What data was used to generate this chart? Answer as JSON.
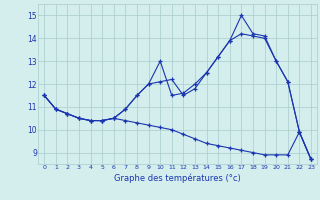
{
  "xlabel": "Graphe des températures (°c)",
  "background_color": "#d4eeee",
  "grid_color": "#aacccc",
  "line_color": "#1a35b0",
  "x_hours": [
    0,
    1,
    2,
    3,
    4,
    5,
    6,
    7,
    8,
    9,
    10,
    11,
    12,
    13,
    14,
    15,
    16,
    17,
    18,
    19,
    20,
    21,
    22,
    23
  ],
  "series1": [
    11.5,
    10.9,
    10.7,
    10.5,
    10.4,
    10.4,
    10.5,
    10.9,
    11.5,
    12.0,
    12.1,
    12.2,
    11.5,
    11.8,
    12.5,
    13.2,
    13.9,
    15.0,
    14.2,
    14.1,
    13.0,
    12.1,
    9.9,
    8.7
  ],
  "series2": [
    11.5,
    10.9,
    10.7,
    10.5,
    10.4,
    10.4,
    10.5,
    10.9,
    11.5,
    12.0,
    13.0,
    11.5,
    11.6,
    12.0,
    12.5,
    13.2,
    13.9,
    14.2,
    14.1,
    14.0,
    13.0,
    12.1,
    9.9,
    8.7
  ],
  "series3": [
    11.5,
    10.9,
    10.7,
    10.5,
    10.4,
    10.4,
    10.5,
    10.4,
    10.3,
    10.2,
    10.1,
    10.0,
    9.8,
    9.6,
    9.4,
    9.3,
    9.2,
    9.1,
    9.0,
    8.9,
    8.9,
    8.9,
    9.9,
    8.7
  ],
  "ylim": [
    8.5,
    15.5
  ],
  "yticks": [
    9,
    10,
    11,
    12,
    13,
    14,
    15
  ],
  "xlim": [
    -0.5,
    23.5
  ],
  "xtick_labels": [
    "0",
    "1",
    "2",
    "3",
    "4",
    "5",
    "6",
    "7",
    "8",
    "9",
    "10",
    "11",
    "12",
    "13",
    "14",
    "15",
    "16",
    "17",
    "18",
    "19",
    "20",
    "21",
    "22",
    "23"
  ]
}
